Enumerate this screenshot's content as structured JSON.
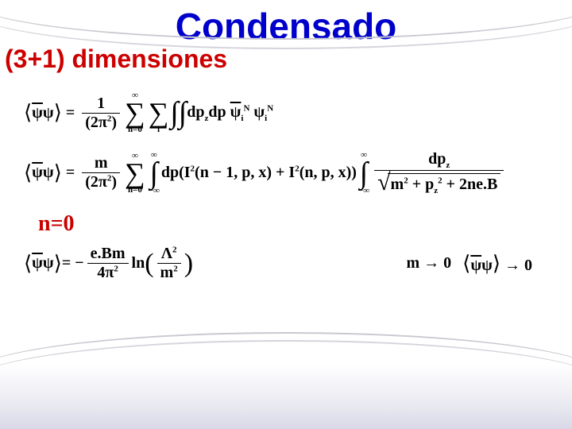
{
  "title": "Condensado",
  "subtitle": "(3+1)  dimensiones",
  "colors": {
    "title_color": "#0000cc",
    "subtitle_color": "#cc0000",
    "text_color": "#000000",
    "curve_color": "#c8c8d0",
    "background": "#ffffff"
  },
  "typography": {
    "title_font": "Comic Sans MS",
    "body_font": "Times New Roman",
    "title_size_pt": 34,
    "subtitle_size_pt": 24,
    "equation_size_pt": 15
  },
  "eq1": {
    "lhs": "⟨ψ̄ψ⟩",
    "frac_num": "1",
    "frac_den_base": "(2π",
    "frac_den_exp": "2",
    "frac_den_close": ")",
    "sum1_top": "∞",
    "sum1_bot": "n=0",
    "sum2_top": "",
    "sum2_bot": "i",
    "integrand_dp": "dp",
    "integrand_z": "z",
    "integrand_dp2": "dp",
    "psi_bar": "ψ",
    "psi_exp": "N",
    "psi_sub": "i",
    "psi2": "ψ",
    "psi2_exp": "N",
    "psi2_sub": "i"
  },
  "eq2": {
    "lhs": "⟨ψ̄ψ⟩",
    "frac_num": "m",
    "frac_den_base": "(2π",
    "frac_den_exp": "2",
    "frac_den_close": ")",
    "sum_top": "∞",
    "sum_bot": "n=0",
    "int1_top": "∞",
    "int1_bot": "−∞",
    "body": "dp(I",
    "exp2": "2",
    "arg1": "(n − 1, p, x) + I",
    "arg2": "(n, p, x))",
    "int2_top": "∞",
    "int2_bot": "−∞",
    "frac2_num_dp": "dp",
    "frac2_num_z": "z",
    "sqrt_m": "m",
    "sqrt_plus1": " + p",
    "sqrt_z": "z",
    "sqrt_plus2": " + 2ne.B"
  },
  "n0": "n=0",
  "eq3": {
    "lhs": "⟨ψ̄ψ⟩",
    "minus": " = −",
    "frac_num": "e.Bm",
    "frac_den": "4π",
    "frac_den_exp": "2",
    "ln": "ln",
    "arg_num": "Λ",
    "arg_num_exp": "2",
    "arg_den": "m",
    "arg_den_exp": "2",
    "limit1_m": "m → 0",
    "limit2": "⟨ψ̄ψ⟩ → 0"
  }
}
